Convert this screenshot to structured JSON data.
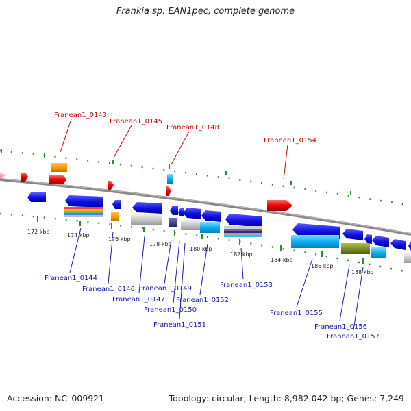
{
  "title": "Frankia sp. EAN1pec, complete genome",
  "accession": "Accession: NC_009921",
  "summary": "Topology: circular; Length: 8,982,042 bp; Genes: 7,249",
  "axis_ticks": [
    "172 kbp",
    "174 kbp",
    "176 kbp",
    "178 kbp",
    "180 kbp",
    "182 kbp",
    "184 kbp",
    "186 kbp",
    "188 kbp"
  ],
  "top_labels": [
    "Franean1_0143",
    "Franean1_0145",
    "Franean1_0148",
    "Franean1_0154"
  ],
  "bottom_labels": [
    "Franean1_0144",
    "Franean1_0146",
    "Franean1_0147",
    "Franean1_0149",
    "Franean1_0150",
    "Franean1_0151",
    "Franean1_0152",
    "Franean1_0153",
    "Franean1_0155",
    "Franean1_0156",
    "Franean1_0157"
  ],
  "colors": {
    "forward_label": "#cc0000",
    "reverse_label": "#1a1aaa",
    "backbone": "#8a8a8a",
    "tick_green": "#2e8b2e"
  }
}
